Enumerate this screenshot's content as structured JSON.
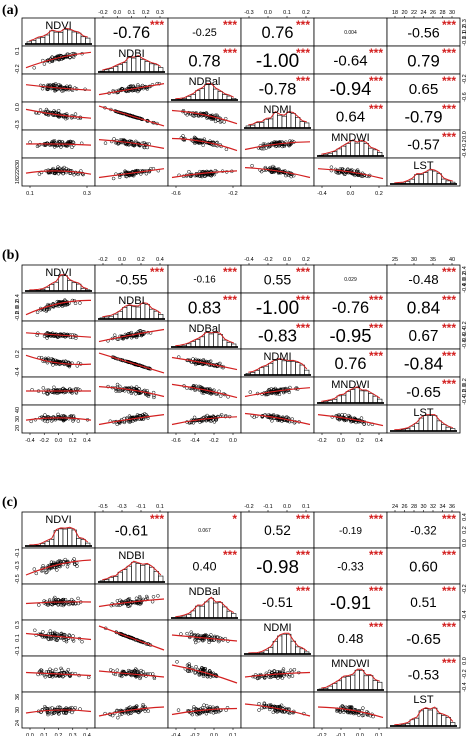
{
  "chart_data": [
    {
      "type": "scatter-matrix",
      "panel_label": "(a)",
      "variables": [
        "NDVI",
        "NDBI",
        "NDBal",
        "NDMI",
        "MNDWI",
        "LST"
      ],
      "axis_ticks": {
        "top": {
          "1": [
            "-0.2",
            "0.0",
            "0.1",
            "0.2",
            "0.3"
          ],
          "3": [
            "-0.3",
            "0.0",
            "0.1",
            "0.2"
          ],
          "5": [
            "18",
            "20",
            "22",
            "24",
            "26",
            "28",
            "30"
          ]
        },
        "right": {
          "0": [
            "0.3",
            "0.2",
            "0.1",
            "-0.1"
          ],
          "2": [
            "-0.2",
            "-0.6"
          ],
          "4": [
            "0.0",
            "-0.2",
            "-0.4"
          ]
        },
        "left": {
          "1": [
            "0.1",
            "-0.2"
          ],
          "3": [
            "0.0",
            "-0.3"
          ],
          "5": [
            "30",
            "26",
            "22",
            "18"
          ]
        },
        "bottom": {
          "0": [
            "0.1",
            "0.3"
          ],
          "2": [
            "-0.6",
            "-0.2"
          ],
          "4": [
            "-0.4",
            "0.0",
            "0.2"
          ]
        }
      },
      "correlations": [
        {
          "row": 0,
          "col": 1,
          "value": "-0.76",
          "sig": "***"
        },
        {
          "row": 0,
          "col": 2,
          "value": "-0.25",
          "sig": "***"
        },
        {
          "row": 0,
          "col": 3,
          "value": "0.76",
          "sig": "***"
        },
        {
          "row": 0,
          "col": 4,
          "value": "0.004",
          "sig": ""
        },
        {
          "row": 0,
          "col": 5,
          "value": "-0.56",
          "sig": "***"
        },
        {
          "row": 1,
          "col": 2,
          "value": "0.78",
          "sig": "***"
        },
        {
          "row": 1,
          "col": 3,
          "value": "-1.00",
          "sig": "***"
        },
        {
          "row": 1,
          "col": 4,
          "value": "-0.64",
          "sig": "***"
        },
        {
          "row": 1,
          "col": 5,
          "value": "0.79",
          "sig": "***"
        },
        {
          "row": 2,
          "col": 3,
          "value": "-0.78",
          "sig": "***"
        },
        {
          "row": 2,
          "col": 4,
          "value": "-0.94",
          "sig": "***"
        },
        {
          "row": 2,
          "col": 5,
          "value": "0.65",
          "sig": "***"
        },
        {
          "row": 3,
          "col": 4,
          "value": "0.64",
          "sig": "***"
        },
        {
          "row": 3,
          "col": 5,
          "value": "-0.79",
          "sig": "***"
        },
        {
          "row": 4,
          "col": 5,
          "value": "-0.57",
          "sig": "***"
        }
      ],
      "scatter_trends": {
        "1,0": [
          0.85,
          0.4,
          0.15
        ],
        "2,0": [
          0.35,
          0.5,
          0.6
        ],
        "3,0": [
          0.2,
          0.45,
          0.6
        ],
        "4,0": [
          0.5,
          0.5,
          0.55
        ],
        "5,0": [
          0.55,
          0.45,
          0.6
        ],
        "2,1": [
          0.8,
          0.55,
          0.3
        ],
        "3,1": [
          0.05,
          0.5,
          0.95
        ],
        "4,1": [
          0.3,
          0.45,
          0.7
        ],
        "5,1": [
          0.75,
          0.55,
          0.35
        ],
        "3,2": [
          0.25,
          0.45,
          0.85
        ],
        "4,2": [
          0.25,
          0.4,
          0.8
        ],
        "5,2": [
          0.75,
          0.55,
          0.45
        ],
        "4,3": [
          0.75,
          0.5,
          0.4
        ],
        "5,3": [
          0.3,
          0.45,
          0.75
        ],
        "5,4": [
          0.35,
          0.5,
          0.8
        ]
      }
    },
    {
      "type": "scatter-matrix",
      "panel_label": "(b)",
      "variables": [
        "NDVI",
        "NDBI",
        "NDBal",
        "NDMI",
        "MNDWI",
        "LST"
      ],
      "axis_ticks": {
        "top": {
          "1": [
            "-0.2",
            "0.0",
            "0.2",
            "0.4"
          ],
          "3": [
            "-0.4",
            "-0.2",
            "0.0",
            "0.2"
          ],
          "5": [
            "25",
            "30",
            "35",
            "40"
          ]
        },
        "right": {
          "0": [
            "0.4",
            "0.2",
            "0.0",
            "-0.4"
          ],
          "2": [
            "-0.2",
            "-0.4",
            "-0.6",
            "-0.8"
          ],
          "4": [
            "0.2",
            "0.0",
            "-0.2",
            "-0.4"
          ]
        },
        "left": {
          "1": [
            "0.4",
            "0.2",
            "0.0",
            "-0.2"
          ],
          "3": [
            "0.2",
            "-0.4"
          ],
          "5": [
            "40",
            "30",
            "20"
          ]
        },
        "bottom": {
          "0": [
            "-0.4",
            "-0.2",
            "0.0",
            "0.2",
            "0.4"
          ],
          "2": [
            "-0.6",
            "-0.4",
            "-0.2",
            "0.0"
          ],
          "4": [
            "-0.2",
            "0.0",
            "0.2",
            "0.4"
          ]
        }
      },
      "correlations": [
        {
          "row": 0,
          "col": 1,
          "value": "-0.55",
          "sig": "***"
        },
        {
          "row": 0,
          "col": 2,
          "value": "-0.16",
          "sig": "***"
        },
        {
          "row": 0,
          "col": 3,
          "value": "0.55",
          "sig": "***"
        },
        {
          "row": 0,
          "col": 4,
          "value": "0.029",
          "sig": ""
        },
        {
          "row": 0,
          "col": 5,
          "value": "-0.48",
          "sig": "***"
        },
        {
          "row": 1,
          "col": 2,
          "value": "0.83",
          "sig": "***"
        },
        {
          "row": 1,
          "col": 3,
          "value": "-1.00",
          "sig": "***"
        },
        {
          "row": 1,
          "col": 4,
          "value": "-0.76",
          "sig": "***"
        },
        {
          "row": 1,
          "col": 5,
          "value": "0.84",
          "sig": "***"
        },
        {
          "row": 2,
          "col": 3,
          "value": "-0.83",
          "sig": "***"
        },
        {
          "row": 2,
          "col": 4,
          "value": "-0.95",
          "sig": "***"
        },
        {
          "row": 2,
          "col": 5,
          "value": "0.67",
          "sig": "***"
        },
        {
          "row": 3,
          "col": 4,
          "value": "0.76",
          "sig": "***"
        },
        {
          "row": 3,
          "col": 5,
          "value": "-0.84",
          "sig": "***"
        },
        {
          "row": 4,
          "col": 5,
          "value": "-0.65",
          "sig": "***"
        }
      ],
      "scatter_trends": {
        "1,0": [
          0.85,
          0.35,
          0.2
        ],
        "2,0": [
          0.4,
          0.5,
          0.6
        ],
        "3,0": [
          0.15,
          0.5,
          0.55
        ],
        "4,0": [
          0.5,
          0.5,
          0.5
        ],
        "5,0": [
          0.55,
          0.45,
          0.55
        ],
        "2,1": [
          0.8,
          0.5,
          0.25
        ],
        "3,1": [
          0.05,
          0.5,
          0.95
        ],
        "4,1": [
          0.3,
          0.45,
          0.75
        ],
        "5,1": [
          0.75,
          0.5,
          0.3
        ],
        "3,2": [
          0.25,
          0.5,
          0.8
        ],
        "4,2": [
          0.2,
          0.45,
          0.8
        ],
        "5,2": [
          0.75,
          0.5,
          0.4
        ],
        "4,3": [
          0.75,
          0.5,
          0.35
        ],
        "5,3": [
          0.25,
          0.45,
          0.75
        ],
        "5,4": [
          0.3,
          0.5,
          0.8
        ]
      }
    },
    {
      "type": "scatter-matrix",
      "panel_label": "(c)",
      "variables": [
        "NDVI",
        "NDBI",
        "NDBal",
        "NDMI",
        "MNDWI",
        "LST"
      ],
      "axis_ticks": {
        "top": {
          "1": [
            "-0.5",
            "-0.3",
            "-0.1",
            "0.1"
          ],
          "3": [
            "-0.2",
            "-0.1",
            "0.0",
            "0.1"
          ],
          "5": [
            "24",
            "26",
            "28",
            "30",
            "32",
            "34",
            "36"
          ]
        },
        "right": {
          "0": [
            "0.4",
            "0.2",
            "0.0"
          ],
          "2": [
            "-0.2",
            "-0.4"
          ],
          "4": [
            "0.0",
            "-0.2",
            "-0.4"
          ]
        },
        "left": {
          "1": [
            "-0.1",
            "-0.3",
            "-0.5"
          ],
          "3": [
            "0.3",
            "0.1",
            "-0.1"
          ],
          "5": [
            "36",
            "30",
            "24"
          ]
        },
        "bottom": {
          "0": [
            "0.0",
            "0.1",
            "0.2",
            "0.3",
            "0.4"
          ],
          "2": [
            "-0.4",
            "-0.2",
            "0.0",
            "0.1"
          ],
          "4": [
            "-0.2",
            "-0.1",
            "0.0",
            "0.1"
          ]
        }
      },
      "correlations": [
        {
          "row": 0,
          "col": 1,
          "value": "-0.61",
          "sig": "***"
        },
        {
          "row": 0,
          "col": 2,
          "value": "0.067",
          "sig": "*"
        },
        {
          "row": 0,
          "col": 3,
          "value": "0.52",
          "sig": "***"
        },
        {
          "row": 0,
          "col": 4,
          "value": "-0.19",
          "sig": "***"
        },
        {
          "row": 0,
          "col": 5,
          "value": "-0.32",
          "sig": "***"
        },
        {
          "row": 1,
          "col": 2,
          "value": "0.40",
          "sig": "***"
        },
        {
          "row": 1,
          "col": 3,
          "value": "-0.98",
          "sig": "***"
        },
        {
          "row": 1,
          "col": 4,
          "value": "-0.33",
          "sig": "***"
        },
        {
          "row": 1,
          "col": 5,
          "value": "0.60",
          "sig": "***"
        },
        {
          "row": 2,
          "col": 3,
          "value": "-0.51",
          "sig": "***"
        },
        {
          "row": 2,
          "col": 4,
          "value": "-0.91",
          "sig": "***"
        },
        {
          "row": 2,
          "col": 5,
          "value": "0.51",
          "sig": "***"
        },
        {
          "row": 3,
          "col": 4,
          "value": "0.48",
          "sig": "***"
        },
        {
          "row": 3,
          "col": 5,
          "value": "-0.65",
          "sig": "***"
        },
        {
          "row": 4,
          "col": 5,
          "value": "-0.53",
          "sig": "***"
        }
      ],
      "scatter_trends": {
        "1,0": [
          0.8,
          0.45,
          0.3
        ],
        "2,0": [
          0.55,
          0.5,
          0.5
        ],
        "3,0": [
          0.35,
          0.45,
          0.55
        ],
        "4,0": [
          0.45,
          0.5,
          0.55
        ],
        "5,0": [
          0.6,
          0.5,
          0.55
        ],
        "2,1": [
          0.65,
          0.5,
          0.4
        ],
        "3,1": [
          0.1,
          0.5,
          0.9
        ],
        "4,1": [
          0.4,
          0.5,
          0.6
        ],
        "5,1": [
          0.7,
          0.5,
          0.4
        ],
        "3,2": [
          0.4,
          0.5,
          0.6
        ],
        "4,2": [
          0.2,
          0.45,
          0.8
        ],
        "5,2": [
          0.65,
          0.5,
          0.45
        ],
        "4,3": [
          0.6,
          0.5,
          0.45
        ],
        "5,3": [
          0.3,
          0.45,
          0.7
        ],
        "5,4": [
          0.4,
          0.5,
          0.75
        ]
      }
    }
  ],
  "colors": {
    "stars": "#d32020",
    "smooth": "#d32020",
    "points": "#000000",
    "frame": "#000000"
  }
}
